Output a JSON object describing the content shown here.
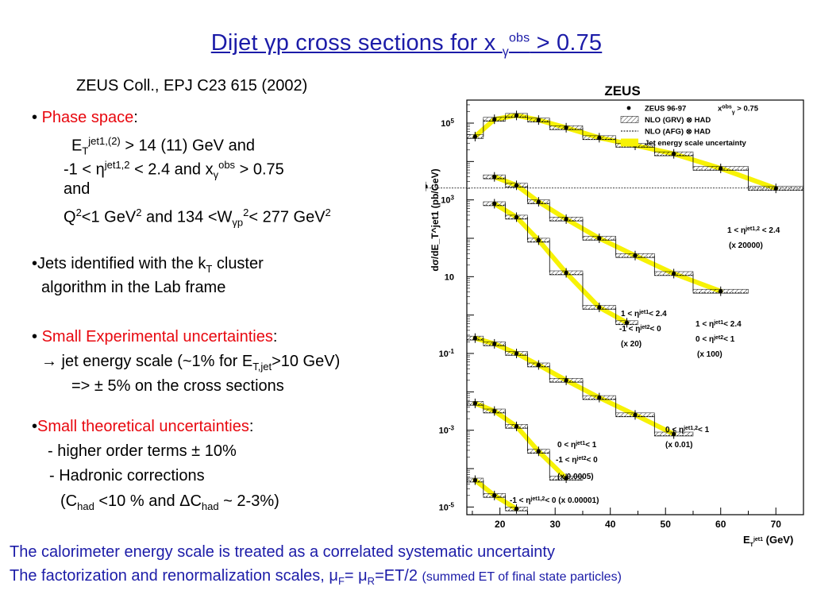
{
  "title": {
    "main": "Dijet ",
    "gamma": "γ",
    "rest": "p cross sections for x ",
    "sup": "obs",
    "sub": "γ",
    "tail": " > 0.75"
  },
  "reference": "ZEUS Coll., EPJ C23  615 (2002)",
  "bullets": {
    "phase_space": {
      "bullet": "•",
      "label": "Phase space",
      "colon": ":",
      "et_line": {
        "pre": "E",
        "sub": "T",
        "sup": "jet1,(2)",
        "post": " > 14 (11) GeV and"
      },
      "eta_line": {
        "pre": "-1 < η",
        "sup": "jet1,2",
        "mid": " < 2.4 and x",
        "sup2": "obs",
        "sub2": "γ",
        "post": " > 0.75"
      },
      "and": "and",
      "q_line": {
        "pre": "Q",
        "sup": "2",
        "mid": "<1 GeV",
        "sup2": "2",
        "mid2": " and  134 <W",
        "sub3": "γp",
        "sup3": "2",
        "mid3": "< 277 GeV",
        "sup4": "2"
      }
    },
    "jets": {
      "bullet": "•",
      "line1_pre": "Jets identified with the k",
      "line1_sub": "T",
      "line1_post": " cluster",
      "line2": "algorithm in the Lab frame"
    },
    "exp": {
      "bullet": "•",
      "label": "Small Experimental uncertainties",
      "colon": ":",
      "line1_pre": "→ jet energy scale (~1% for E",
      "line1_sub": "T,jet",
      "line1_post": ">10 GeV)",
      "line2": "=> ± 5% on the cross sections"
    },
    "theo": {
      "bullet": "•",
      "label": "Small theoretical uncertainties",
      "colon": ":",
      "line1": "- higher order terms ± 10%",
      "line2": "- Hadronic corrections",
      "line3_pre": "(C",
      "line3_sub": "had",
      "line3_mid": " <10 %  and ΔC",
      "line3_sub2": "had",
      "line3_post": " ~ 2-3%)"
    }
  },
  "footer": {
    "line1": "The calorimeter energy scale is treated as a correlated systematic uncertainty",
    "line2_pre": "The factorization and renormalization scales, μ",
    "line2_sub1": "F",
    "line2_mid": "= μ",
    "line2_sub2": "R",
    "line2_post": "=ET/2 ",
    "line2_small": "(summed ET of final state particles)"
  },
  "chart_data": {
    "type": "line",
    "title": "ZEUS",
    "xlabel_main": "E",
    "xlabel_sub": "T",
    "xlabel_sup": "jet1",
    "xlabel_unit": " (GeV)",
    "ylabel": "dσ/dE_T^jet1 (pb/GeV)",
    "x_ticks": [
      20,
      30,
      40,
      50,
      60,
      70
    ],
    "xlim": [
      14,
      75
    ],
    "ylog_range": [
      -5.2,
      5.6
    ],
    "y_ticks": [
      {
        "exp": 5,
        "label": "10",
        "sup": "5"
      },
      {
        "exp": 3,
        "label": "10",
        "sup": "3"
      },
      {
        "exp": 1,
        "label": "10",
        "sup": ""
      },
      {
        "exp": -1,
        "label": "10",
        "sup": "-1"
      },
      {
        "exp": -3,
        "label": "10",
        "sup": "-3"
      },
      {
        "exp": -5,
        "label": "10",
        "sup": "-5"
      }
    ],
    "legend": [
      {
        "marker": "dot",
        "text": "ZEUS 96-97",
        "extra": "x",
        "extra_sup": "obs",
        "extra_sub": "γ",
        "extra_post": " > 0.75"
      },
      {
        "marker": "hatch",
        "text": "NLO (GRV) ⊗ HAD"
      },
      {
        "marker": "dashed",
        "text": "NLO (AFG) ⊗ HAD"
      },
      {
        "marker": "yellow",
        "text": "Jet energy scale uncertainty"
      }
    ],
    "series": [
      {
        "label1": "1 < η",
        "label1_sup": "jet1,2",
        "label1_post": " < 2.4",
        "label2": "(x 20000)",
        "edges": [
          14,
          17,
          21,
          25,
          29,
          35,
          41,
          48,
          55,
          65,
          75
        ],
        "values": [
          4.65,
          5.1,
          5.2,
          5.08,
          4.88,
          4.62,
          4.42,
          4.2,
          3.82,
          3.3,
          3.35
        ]
      },
      {
        "label1": "1 < η",
        "label1_sup": "jet1",
        "label1_post": "< 2.4",
        "label2": "0 < η",
        "label2_sup": "jet2",
        "label2_post": "< 1",
        "label3": "(x 100)",
        "edges": [
          17,
          21,
          25,
          29,
          35,
          41,
          48,
          55,
          65
        ],
        "values": [
          3.6,
          3.38,
          2.95,
          2.5,
          2.0,
          1.55,
          1.08,
          0.62
        ]
      },
      {
        "label1": "1 < η",
        "label1_sup": "jet1",
        "label1_post": "< 2.4",
        "label2": "-1 < η",
        "label2_sup": "jet2",
        "label2_post": "< 0",
        "label3": "(x 20)",
        "edges": [
          17,
          21,
          25,
          29,
          35,
          41,
          45
        ],
        "values": [
          2.9,
          2.55,
          1.95,
          1.1,
          0.2,
          -0.2
        ]
      },
      {
        "label1": "0 < η",
        "label1_sup": "jet1,2",
        "label1_post": "< 1",
        "label2": "(x 0.01)",
        "edges": [
          14,
          17,
          21,
          25,
          29,
          35,
          41,
          48,
          55
        ],
        "values": [
          -0.6,
          -0.75,
          -1.0,
          -1.3,
          -1.7,
          -2.15,
          -2.6,
          -3.1
        ]
      },
      {
        "label1": "0 < η",
        "label1_sup": "jet1",
        "label1_post": "< 1",
        "label2": "-1 < η",
        "label2_sup": "jet2",
        "label2_post": "< 0",
        "label3": "(x 0.0005)",
        "edges": [
          14,
          17,
          21,
          25,
          29,
          35
        ],
        "values": [
          -2.3,
          -2.5,
          -2.9,
          -3.55,
          -4.25
        ]
      },
      {
        "label1": "-1 < η",
        "label1_sup": "jet1,2",
        "label1_post": "< 0  (x 0.00001)",
        "label2": "",
        "edges": [
          14,
          17,
          21,
          25
        ],
        "values": [
          -4.3,
          -4.7,
          -5.05
        ]
      }
    ]
  }
}
